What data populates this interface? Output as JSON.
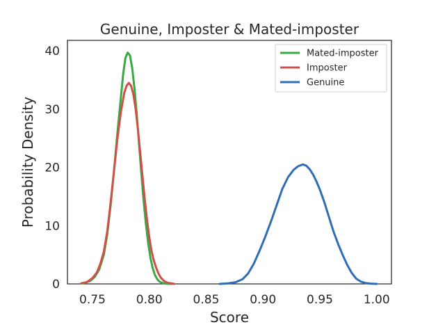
{
  "chart_data": {
    "type": "line",
    "title": "Genuine, Imposter & Mated-imposter",
    "xlabel": "Score",
    "ylabel": "Probability Density",
    "xlim": [
      0.728,
      1.013
    ],
    "ylim": [
      0,
      41.8
    ],
    "xticks": [
      0.75,
      0.8,
      0.85,
      0.9,
      0.95,
      1.0
    ],
    "xtick_labels": [
      "0.75",
      "0.80",
      "0.85",
      "0.90",
      "0.95",
      "1.00"
    ],
    "yticks": [
      0,
      10,
      20,
      30,
      40
    ],
    "ytick_labels": [
      "0",
      "10",
      "20",
      "30",
      "40"
    ],
    "grid": false,
    "legend_position": "top-right",
    "series": [
      {
        "name": "Mated-imposter",
        "color": "#3aa845",
        "x": [
          0.742,
          0.748,
          0.752,
          0.756,
          0.76,
          0.763,
          0.766,
          0.769,
          0.772,
          0.775,
          0.777,
          0.779,
          0.781,
          0.783,
          0.785,
          0.787,
          0.789,
          0.791,
          0.793,
          0.795,
          0.797,
          0.799,
          0.801,
          0.803,
          0.805,
          0.807,
          0.809,
          0.811,
          0.813,
          0.815,
          0.817,
          0.82
        ],
        "y": [
          0.1,
          0.5,
          1.2,
          2.5,
          5.0,
          8.5,
          13.5,
          19.5,
          26.0,
          32.0,
          36.0,
          38.8,
          39.7,
          39.2,
          37.0,
          33.5,
          29.0,
          24.0,
          19.0,
          14.3,
          10.3,
          7.0,
          4.5,
          2.7,
          1.5,
          0.8,
          0.4,
          0.2,
          0.1,
          0.05,
          0.02,
          0.0
        ]
      },
      {
        "name": "Imposter",
        "color": "#cd5148",
        "x": [
          0.74,
          0.745,
          0.75,
          0.754,
          0.757,
          0.76,
          0.763,
          0.766,
          0.769,
          0.772,
          0.775,
          0.778,
          0.78,
          0.782,
          0.784,
          0.786,
          0.788,
          0.79,
          0.792,
          0.794,
          0.796,
          0.798,
          0.8,
          0.802,
          0.804,
          0.806,
          0.808,
          0.81,
          0.813,
          0.816,
          0.819,
          0.822
        ],
        "y": [
          0.1,
          0.3,
          1.0,
          2.0,
          3.5,
          5.5,
          9.0,
          14.0,
          19.5,
          25.0,
          29.5,
          32.8,
          34.0,
          34.5,
          34.0,
          32.5,
          30.0,
          26.5,
          22.5,
          18.5,
          14.5,
          11.0,
          8.0,
          5.6,
          4.0,
          2.8,
          1.8,
          1.1,
          0.5,
          0.2,
          0.1,
          0.0
        ]
      },
      {
        "name": "Genuine",
        "color": "#2e6db4",
        "x": [
          0.862,
          0.87,
          0.876,
          0.882,
          0.887,
          0.892,
          0.897,
          0.902,
          0.907,
          0.912,
          0.917,
          0.922,
          0.927,
          0.931,
          0.935,
          0.938,
          0.941,
          0.944,
          0.947,
          0.95,
          0.954,
          0.958,
          0.962,
          0.966,
          0.97,
          0.974,
          0.978,
          0.982,
          0.986,
          0.99,
          0.995,
          1.0
        ],
        "y": [
          0.0,
          0.1,
          0.3,
          0.8,
          1.8,
          3.5,
          5.7,
          8.1,
          10.7,
          13.5,
          16.3,
          18.3,
          19.6,
          20.2,
          20.5,
          20.3,
          19.7,
          18.8,
          17.6,
          16.2,
          14.0,
          11.5,
          9.0,
          6.9,
          5.0,
          3.3,
          1.9,
          0.9,
          0.4,
          0.15,
          0.05,
          0.0
        ]
      }
    ]
  }
}
